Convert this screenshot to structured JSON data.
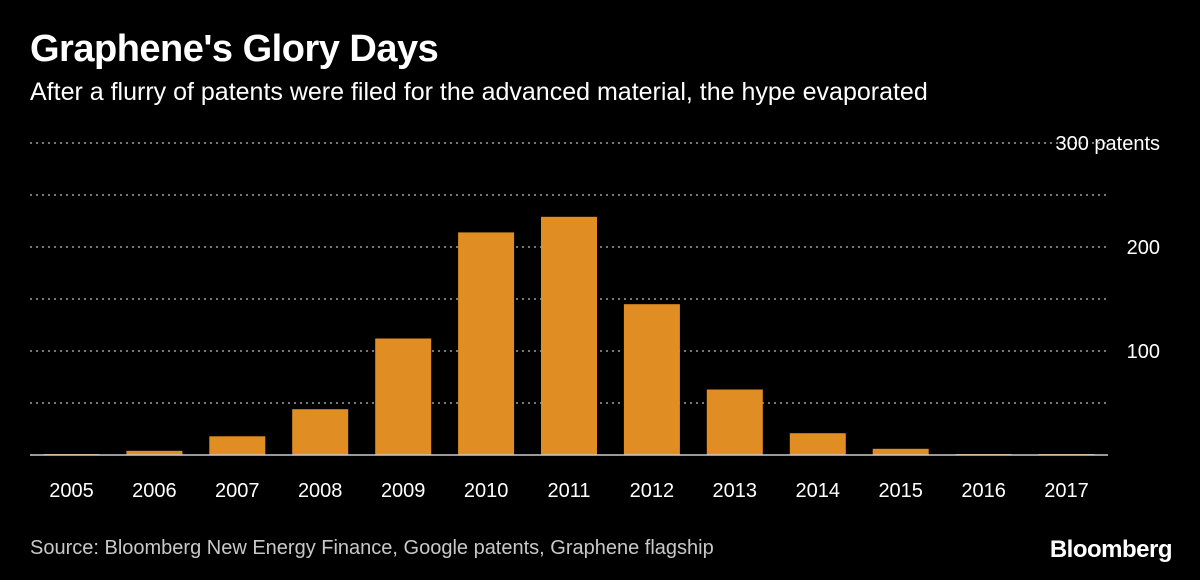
{
  "header": {
    "title": "Graphene's Glory Days",
    "subtitle": "After a flurry of patents were filed for the advanced material, the hype evaporated"
  },
  "footer": {
    "source": "Source: Bloomberg New Energy Finance, Google patents, Graphene flagship",
    "brand": "Bloomberg"
  },
  "colors": {
    "bar": "#e08e24",
    "background": "#000000",
    "grid": "#777777",
    "axis": "#cccccc"
  },
  "chart_data": {
    "type": "bar",
    "categories": [
      "2005",
      "2006",
      "2007",
      "2008",
      "2009",
      "2010",
      "2011",
      "2012",
      "2013",
      "2014",
      "2015",
      "2016",
      "2017"
    ],
    "values": [
      1,
      4,
      18,
      44,
      112,
      214,
      229,
      145,
      63,
      21,
      6,
      1,
      1
    ],
    "title": "Graphene's Glory Days",
    "xlabel": "",
    "ylabel": "",
    "ylim": [
      0,
      300
    ],
    "yticks": [
      {
        "value": 100,
        "label": "100"
      },
      {
        "value": 200,
        "label": "200"
      },
      {
        "value": 300,
        "label": "300 patents"
      }
    ],
    "grid": true,
    "grid_style": "dotted"
  }
}
